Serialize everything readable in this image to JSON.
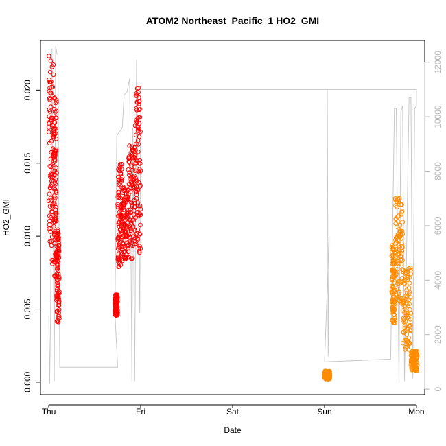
{
  "chart_data": {
    "type": "scatter",
    "title": "ATOM2 Northeast_Pacific_1 HO2_GMI",
    "xlabel": "Date",
    "ylabel": "HO2_GMI",
    "x_ticks": [
      "Thu",
      "Fri",
      "Sat",
      "Sun",
      "Mon"
    ],
    "xlim": [
      -0.09,
      4.09
    ],
    "ylim": [
      -0.00085,
      0.0234
    ],
    "y_ticks": [
      0.0,
      0.005,
      0.01,
      0.015,
      0.02
    ],
    "y_tick_labels": [
      "0.000",
      "0.005",
      "0.010",
      "0.015",
      "0.020"
    ],
    "y2_label": "",
    "y2lim": [
      -200,
      12800
    ],
    "y2_ticks": [
      0,
      2000,
      4000,
      6000,
      8000,
      10000,
      12000
    ],
    "y2_tick_labels": [
      "0",
      "2000",
      "4000",
      "6000",
      "8000",
      "10000",
      "12000"
    ],
    "grid": false,
    "colors": {
      "flight_1": "#ff0000",
      "flight_2": "#ff8c00",
      "altitude_line": "#c8c8c8",
      "axis": "#000000",
      "right_axis": "#b8b8b8"
    },
    "series": [
      {
        "marker": "open-circle",
        "color": "#ff0000",
        "segments": [
          {
            "x_range": [
              0.0,
              0.055
            ],
            "y_min": 0.0055,
            "y_max": 0.0224
          },
          {
            "x_range": [
              0.055,
              0.085
            ],
            "y_min": 0.005,
            "y_max": 0.0195
          },
          {
            "x_range": [
              0.085,
              0.115
            ],
            "y_min": 0.0028,
            "y_max": 0.0105
          },
          {
            "x_range": [
              0.72,
              0.75
            ],
            "y_min": 0.0043,
            "y_max": 0.006
          },
          {
            "x_range": [
              0.75,
              0.8
            ],
            "y_min": 0.0065,
            "y_max": 0.0152
          },
          {
            "x_range": [
              0.8,
              0.865
            ],
            "y_min": 0.0075,
            "y_max": 0.0135
          },
          {
            "x_range": [
              0.865,
              0.94
            ],
            "y_min": 0.007,
            "y_max": 0.0162
          },
          {
            "x_range": [
              0.94,
              1.0
            ],
            "y_min": 0.0068,
            "y_max": 0.0205
          }
        ]
      },
      {
        "marker": "open-circle",
        "color": "#ff8c00",
        "segments": [
          {
            "x_range": [
              2.995,
              3.06
            ],
            "y_min": 0.0001,
            "y_max": 0.0008
          },
          {
            "x_range": [
              3.73,
              3.77
            ],
            "y_min": 0.003,
            "y_max": 0.0095
          },
          {
            "x_range": [
              3.77,
              3.85
            ],
            "y_min": 0.004,
            "y_max": 0.0128
          },
          {
            "x_range": [
              3.85,
              3.94
            ],
            "y_min": 0.0012,
            "y_max": 0.008
          },
          {
            "x_range": [
              3.94,
              4.01
            ],
            "y_min": 0.0005,
            "y_max": 0.0022
          }
        ]
      }
    ],
    "altitude_line": {
      "axis": "right",
      "points": [
        [
          0.0,
          2700
        ],
        [
          0.01,
          200
        ],
        [
          0.02,
          2700
        ],
        [
          0.035,
          12500
        ],
        [
          0.06,
          300
        ],
        [
          0.075,
          12600
        ],
        [
          0.09,
          12300
        ],
        [
          0.1,
          12300
        ],
        [
          0.12,
          800
        ],
        [
          0.75,
          800
        ],
        [
          0.72,
          2800
        ],
        [
          0.74,
          9300
        ],
        [
          0.8,
          9600
        ],
        [
          0.82,
          10800
        ],
        [
          0.85,
          10900
        ],
        [
          0.88,
          11400
        ],
        [
          0.905,
          300
        ],
        [
          0.915,
          9600
        ],
        [
          0.935,
          300
        ],
        [
          0.955,
          12100
        ],
        [
          0.99,
          2800
        ],
        [
          1.0,
          11000
        ],
        [
          3.03,
          11000
        ],
        [
          3.04,
          1200
        ],
        [
          3.05,
          5600
        ],
        [
          3.0,
          1000
        ],
        [
          3.72,
          1100
        ],
        [
          3.76,
          10300
        ],
        [
          3.78,
          10300
        ],
        [
          3.81,
          200
        ],
        [
          3.83,
          10200
        ],
        [
          3.85,
          10400
        ],
        [
          3.87,
          300
        ],
        [
          3.92,
          10700
        ],
        [
          3.94,
          10700
        ],
        [
          3.96,
          400
        ],
        [
          3.98,
          10300
        ],
        [
          4.0,
          10400
        ],
        [
          4.0,
          11000
        ],
        [
          3.0,
          11000
        ]
      ]
    }
  }
}
